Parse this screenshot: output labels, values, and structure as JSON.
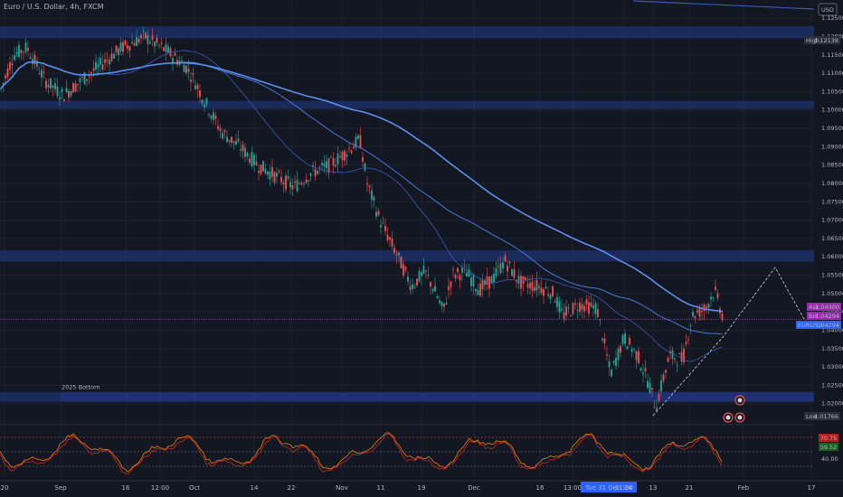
{
  "header": {
    "symbol_title": "Euro / U.S. Dollar, 4h, FXCM",
    "currency": "USD"
  },
  "chart_data": {
    "type": "candlestick",
    "title": "Euro / U.S. Dollar, 4h, FXCM",
    "y_ticks": [
      "1.12500",
      "1.12000",
      "1.11500",
      "1.11000",
      "1.10500",
      "1.10000",
      "1.09500",
      "1.09000",
      "1.08500",
      "1.08000",
      "1.07500",
      "1.07000",
      "1.06500",
      "1.06000",
      "1.05500",
      "1.05000",
      "1.04500",
      "1.04000",
      "1.03500",
      "1.03000",
      "1.02500",
      "1.02000"
    ],
    "ylim": [
      1.0155,
      1.1275
    ],
    "x_ticks": [
      "20",
      "Sep",
      "16",
      "12:00",
      "Oct",
      "14",
      "22",
      "Nov",
      "11",
      "19",
      "Dec",
      "16",
      "13:00",
      "21:00",
      "13",
      "21",
      "Feb",
      "17"
    ],
    "crosshair_date": "Tue 31 Dec '24",
    "price_markers": [
      {
        "label": "High",
        "value": "1.12138"
      },
      {
        "label": "Ask",
        "value": "1.04300"
      },
      {
        "label": "Bid",
        "value": "1.04294"
      },
      {
        "label": "EURUSD",
        "value": "1.04294"
      },
      {
        "label": "Low",
        "value": "1.01766"
      }
    ],
    "zones": [
      {
        "from": 1.1195,
        "to": 1.1228
      },
      {
        "from": 1.1003,
        "to": 1.1025
      },
      {
        "from": 1.0587,
        "to": 1.0618
      },
      {
        "from": 1.0205,
        "to": 1.0232
      }
    ],
    "annotation": "2025 Bottom",
    "indicator": {
      "name": "Stochastic",
      "values": [
        "70.75",
        "59.52",
        "40.00"
      ]
    }
  }
}
